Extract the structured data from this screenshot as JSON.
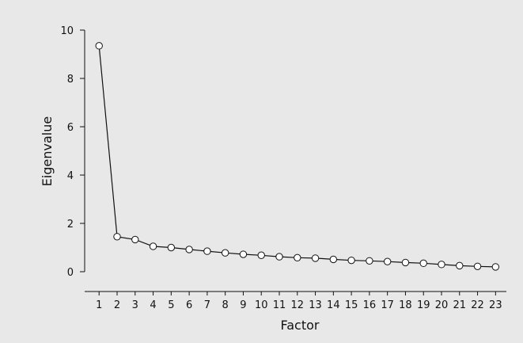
{
  "chart_data": {
    "type": "line",
    "title": "",
    "xlabel": "Factor",
    "ylabel": "Eigenvalue",
    "x": [
      1,
      2,
      3,
      4,
      5,
      6,
      7,
      8,
      9,
      10,
      11,
      12,
      13,
      14,
      15,
      16,
      17,
      18,
      19,
      20,
      21,
      22,
      23
    ],
    "series": [
      {
        "values": [
          9.35,
          1.45,
          1.33,
          1.05,
          1.0,
          0.92,
          0.85,
          0.78,
          0.72,
          0.68,
          0.62,
          0.58,
          0.56,
          0.51,
          0.47,
          0.45,
          0.42,
          0.38,
          0.35,
          0.3,
          0.25,
          0.22,
          0.2
        ]
      }
    ],
    "xticks": [
      "1",
      "2",
      "3",
      "4",
      "5",
      "6",
      "7",
      "8",
      "9",
      "10",
      "11",
      "12",
      "13",
      "14",
      "15",
      "16",
      "17",
      "18",
      "19",
      "20",
      "21",
      "22",
      "23"
    ],
    "yticks": [
      "0",
      "2",
      "4",
      "6",
      "8",
      "10"
    ],
    "ylim": [
      0,
      10
    ],
    "xlim": [
      0.2,
      23.6
    ],
    "grid": false,
    "legend": "none",
    "colors": {
      "background": "#e8e8e9",
      "line": "#111111",
      "marker_fill": "#ffffff",
      "marker_stroke": "#111111"
    }
  }
}
